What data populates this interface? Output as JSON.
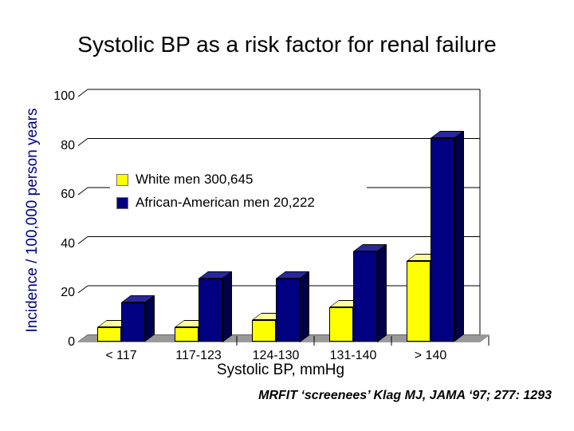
{
  "slide": {
    "title": "Systolic BP as a risk factor for renal failure",
    "citation": "MRFIT ‘screenees’ Klag MJ, JAMA ‘97; 277: 1293"
  },
  "legend": {
    "items": [
      {
        "label": "White men 300,645",
        "color": "#ffff00"
      },
      {
        "label": "African-American men 20,222",
        "color": "#000080"
      }
    ]
  },
  "chart_data": {
    "type": "bar",
    "style": "3d-column",
    "title": "Systolic BP as a risk factor for renal failure",
    "categories": [
      "< 117",
      "117-123",
      "124-130",
      "131-140",
      "> 140"
    ],
    "series": [
      {
        "name": "White men 300,645",
        "color": "#ffff00",
        "values": [
          6,
          6,
          9,
          14,
          33
        ]
      },
      {
        "name": "African-American men 20,222",
        "color": "#000080",
        "values": [
          16,
          26,
          26,
          37,
          83
        ]
      }
    ],
    "xlabel": "Systolic BP, mmHg",
    "ylabel": "Incidence / 100,000 person years",
    "ylim": [
      0,
      100
    ],
    "yticks": [
      0,
      20,
      40,
      60,
      80,
      100
    ],
    "grid": true,
    "legend_position": "inside-upper-left"
  },
  "colors": {
    "background": "#ffffff",
    "title_text": "#000000",
    "ylabel_text": "#00008b",
    "axis_text": "#000000",
    "gridline": "#000000",
    "floor": "#999999",
    "floor_edge": "#7a7a7a",
    "bar_yellow_front": "#ffff00",
    "bar_yellow_top": "#ffff99",
    "bar_yellow_side": "#999900",
    "bar_blue_front": "#000080",
    "bar_blue_top": "#28289c",
    "bar_blue_side": "#000048"
  }
}
